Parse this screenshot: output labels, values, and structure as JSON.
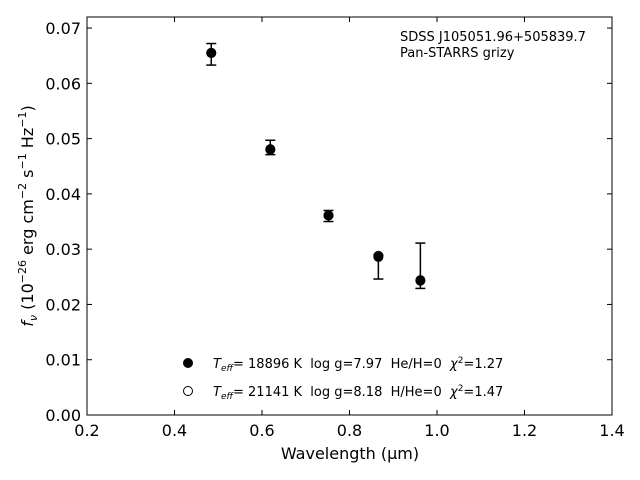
{
  "chart_data": {
    "type": "scatter",
    "xlabel": "Wavelength (μm)",
    "ylabel_parts": {
      "f": "f",
      "nu": "ν",
      "open": " (10",
      "exp1": "−26",
      "mid1": " erg cm",
      "exp2": "−2",
      "mid2": " s",
      "exp3": "−1",
      "mid3": " Hz",
      "exp4": "−1",
      "close": ")"
    },
    "xlim": [
      0.2,
      1.4
    ],
    "ylim": [
      0.0,
      0.072
    ],
    "xticks": [
      0.2,
      0.4,
      0.6,
      0.8,
      1.0,
      1.2,
      1.4
    ],
    "xtick_labels": [
      "0.2",
      "0.4",
      "0.6",
      "0.8",
      "1.0",
      "1.2",
      "1.4"
    ],
    "yticks": [
      0.0,
      0.01,
      0.02,
      0.03,
      0.04,
      0.05,
      0.06,
      0.07
    ],
    "ytick_labels": [
      "0.00",
      "0.01",
      "0.02",
      "0.03",
      "0.04",
      "0.05",
      "0.06",
      "0.07"
    ],
    "annotation": {
      "line1": "SDSS J105051.96+505839.7",
      "line2": "Pan-STARRS grizy"
    },
    "observed": {
      "x": [
        0.484,
        0.619,
        0.752,
        0.866,
        0.962
      ],
      "y_low": [
        0.0633,
        0.0471,
        0.035,
        0.0246,
        0.0229
      ],
      "y_high": [
        0.0672,
        0.0497,
        0.037,
        0.029,
        0.0311
      ]
    },
    "series": [
      {
        "name": "Teff= 18896 K  log g=7.97  He/H=0  χ2=1.27",
        "marker": "filled",
        "x": [
          0.484,
          0.619,
          0.752,
          0.866,
          0.962
        ],
        "y": [
          0.0655,
          0.048,
          0.0361,
          0.0286,
          0.0243
        ]
      },
      {
        "name": "Teff= 21141 K  log g=8.18  H/He=0  χ2=1.47",
        "marker": "open",
        "x": [
          0.484,
          0.619,
          0.752,
          0.866,
          0.962
        ],
        "y": [
          0.0655,
          0.0481,
          0.0361,
          0.0288,
          0.0244
        ]
      }
    ],
    "legend": {
      "placement": "lower-center",
      "entries": [
        {
          "T": "T",
          "eff": "eff",
          "teff_value": "= 18896 K",
          "logg": "  log g=7.97",
          "comp": "  He/H=0",
          "chi": "  χ",
          "chi_exp": "2",
          "chi_val": "=1.27"
        },
        {
          "T": "T",
          "eff": "eff",
          "teff_value": "= 21141 K",
          "logg": "  log g=8.18",
          "comp": "  H/He=0",
          "chi": "  χ",
          "chi_exp": "2",
          "chi_val": "=1.47"
        }
      ]
    },
    "colors": {
      "marker": "#000000",
      "axis": "#000000"
    }
  }
}
